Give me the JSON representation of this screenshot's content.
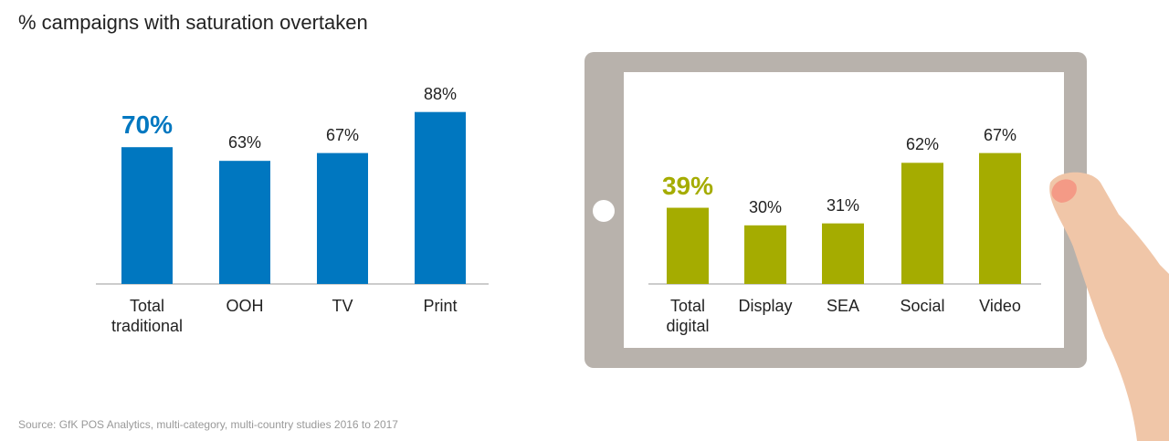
{
  "title": "% campaigns with saturation overtaken",
  "source": "Source: GfK POS Analytics, multi-category, multi-country studies 2016 to 2017",
  "chart_data": [
    {
      "type": "bar",
      "color": "#0077c0",
      "categories": [
        "Total traditional",
        "OOH",
        "TV",
        "Print"
      ],
      "values": [
        70,
        63,
        67,
        88
      ],
      "value_labels": [
        "70%",
        "63%",
        "67%",
        "88%"
      ]
    },
    {
      "type": "bar",
      "color": "#a5ac00",
      "categories": [
        "Total digital",
        "Display",
        "SEA",
        "Social",
        "Video"
      ],
      "values": [
        39,
        30,
        31,
        62,
        67
      ],
      "value_labels": [
        "39%",
        "30%",
        "31%",
        "62%",
        "67%"
      ]
    }
  ]
}
